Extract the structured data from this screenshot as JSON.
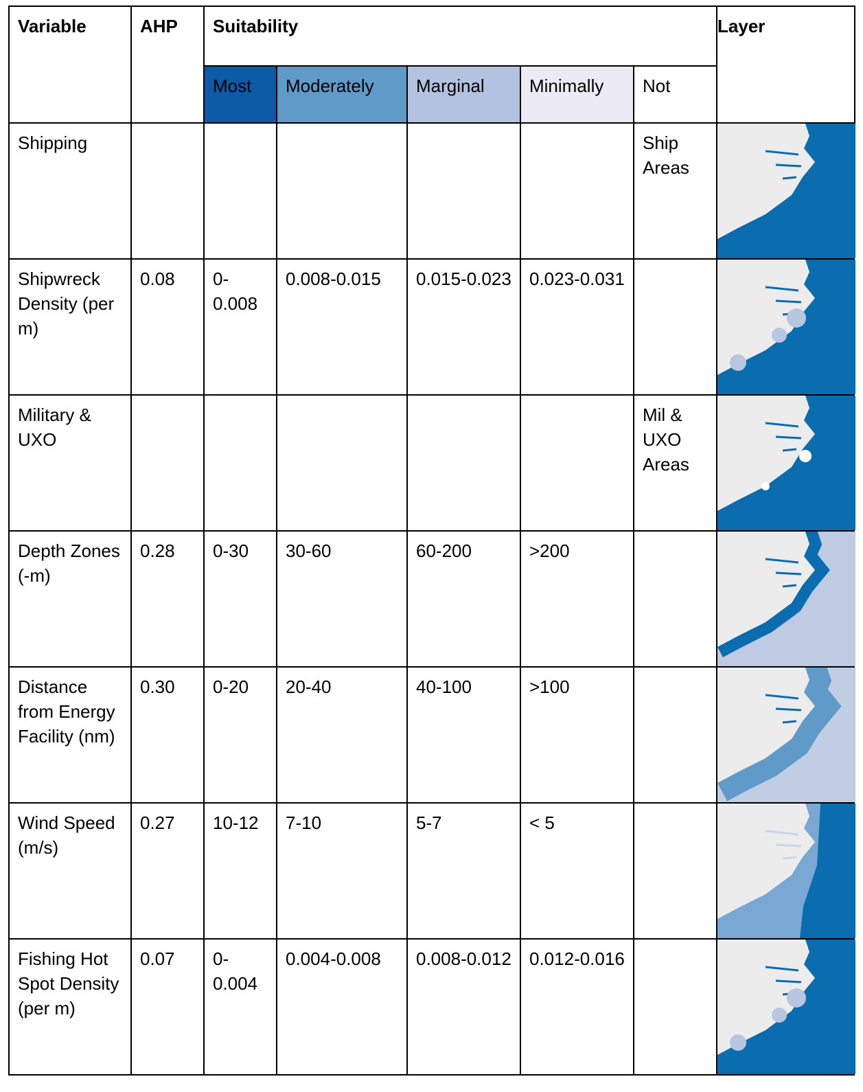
{
  "table": {
    "header": {
      "variable": "Variable",
      "ahp": "AHP",
      "suitability": "Suitability",
      "layer": "Layer"
    },
    "subheader": [
      "Most",
      "Moderately",
      "Marginal",
      "Minimally",
      "Not"
    ],
    "rows": [
      [
        "Shipping",
        null,
        null,
        null,
        null,
        null,
        "Ship Areas"
      ],
      [
        "Shipwreck Density (per m)",
        "0.08",
        "0-0.008",
        "0.008-0.015",
        "0.015-0.023",
        "0.023-0.031",
        null
      ],
      [
        "Military & UXO",
        null,
        null,
        null,
        null,
        null,
        "Mil & UXO Areas"
      ],
      [
        "Depth Zones (-m)",
        "0.28",
        "0-30",
        "30-60",
        "60-200",
        ">200",
        null
      ],
      [
        "Distance from Energy Facility (nm)",
        "0.30",
        "0-20",
        "20-40",
        "40-100",
        ">100",
        null
      ],
      [
        "Wind Speed (m/s)",
        "0.27",
        "10-12",
        "7-10",
        "5-7",
        "< 5",
        null
      ],
      [
        "Fishing Hot Spot Density (per m)",
        "0.07",
        "0-0.004",
        "0.004-0.008",
        "0.008-0.012",
        "0.012-0.016",
        null
      ]
    ]
  }
}
